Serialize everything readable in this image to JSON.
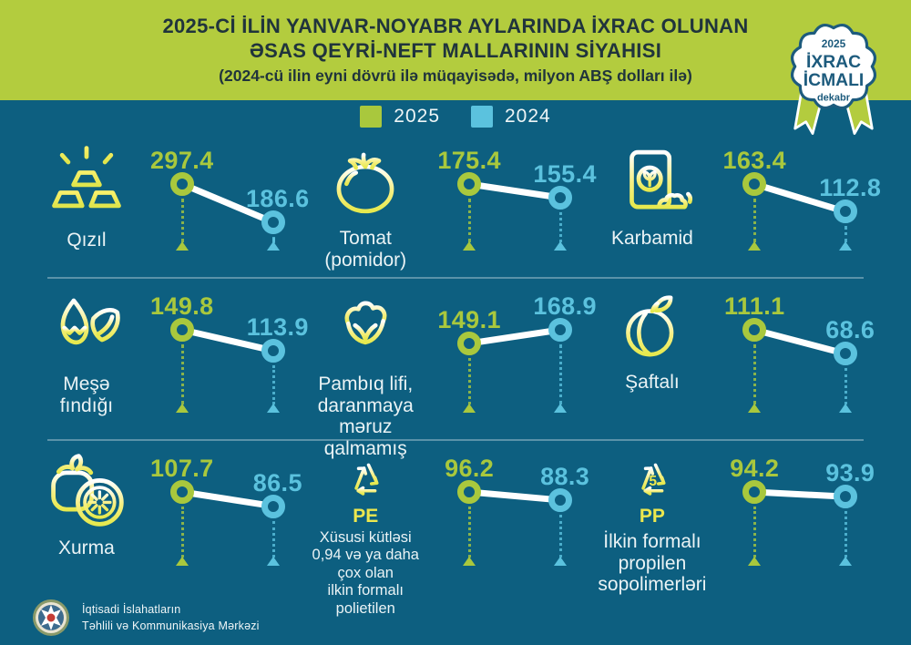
{
  "header": {
    "title_line1": "2025-Cİ İLİN YANVAR-NOYABR AYLARINDA İXRAC OLUNAN",
    "title_line2": "ƏSAS QEYRİ-NEFT MALLARININ SİYAHISI",
    "subtitle": "(2024-cü ilin eyni dövrü ilə müqayisədə, milyon ABŞ dolları ilə)"
  },
  "badge": {
    "year": "2025",
    "line1": "İXRAC",
    "line2": "İCMALI",
    "caption": "dekabr"
  },
  "legend": [
    {
      "label": "2025",
      "color": "#a9c83d"
    },
    {
      "label": "2024",
      "color": "#5bc2de"
    }
  ],
  "items": [
    {
      "icon": "gold-bars",
      "label": "Qızıl",
      "values": [
        297.4,
        186.6
      ]
    },
    {
      "icon": "tomato",
      "label": "Tomat\n(pomidor)",
      "values": [
        175.4,
        155.4
      ]
    },
    {
      "icon": "fertilizer-bag",
      "label": "Karbamid",
      "values": [
        163.4,
        112.8
      ]
    },
    {
      "icon": "hazelnut",
      "label": "Meşə\nfındığı",
      "values": [
        149.8,
        113.9
      ]
    },
    {
      "icon": "cotton",
      "label": "Pambıq lifi,\ndaranmaya məruz\nqalmamış",
      "values": [
        149.1,
        168.9
      ]
    },
    {
      "icon": "peach",
      "label": "Şaftalı",
      "values": [
        111.1,
        68.6
      ]
    },
    {
      "icon": "persimmon",
      "label": "Xurma",
      "values": [
        107.7,
        86.5
      ]
    },
    {
      "icon": "recycle-pe",
      "icon_caption": "PE",
      "label": "Xüsusi kütləsi\n0,94 və ya daha\nçox olan\nilkin formalı polietilen",
      "values": [
        96.2,
        88.3
      ]
    },
    {
      "icon": "recycle-pp",
      "icon_caption": "PP",
      "icon_number": "5",
      "label": "İlkin formalı\npropilen\nsopolimerləri",
      "values": [
        94.2,
        93.9
      ]
    }
  ],
  "footer": {
    "org_line1": "İqtisadi İslahatların",
    "org_line2": "Təhlili və Kommunikasiya Mərkəzi"
  },
  "colors": {
    "background": "#0d5f80",
    "header_green": "#b3cc3e",
    "series_2025": "#a9c83d",
    "series_2024": "#5bc2de",
    "icon_yellow": "#ece74e",
    "badge_navy": "#1d5b7d",
    "title_text": "#20343c",
    "body_text": "#eaf3f5"
  },
  "chart_data": {
    "type": "line",
    "title": "2025-Cİ İLİN YANVAR-NOYABR AYLARINDA İXRAC OLUNAN ƏSAS QEYRİ-NEFT MALLARININ SİYAHISI",
    "subtitle": "(2024-cü ilin eyni dövrü ilə müqayisədə, milyon ABŞ dolları ilə)",
    "unit": "milyon ABŞ dolları",
    "categories": [
      "2025",
      "2024"
    ],
    "legend_position": "top",
    "series": [
      {
        "name": "Qızıl",
        "values": [
          297.4,
          186.6
        ]
      },
      {
        "name": "Tomat (pomidor)",
        "values": [
          175.4,
          155.4
        ]
      },
      {
        "name": "Karbamid",
        "values": [
          163.4,
          112.8
        ]
      },
      {
        "name": "Meşə fındığı",
        "values": [
          149.8,
          113.9
        ]
      },
      {
        "name": "Pambıq lifi, daranmaya məruz qalmamış",
        "values": [
          149.1,
          168.9
        ]
      },
      {
        "name": "Şaftalı",
        "values": [
          111.1,
          68.6
        ]
      },
      {
        "name": "Xurma",
        "values": [
          107.7,
          86.5
        ]
      },
      {
        "name": "Xüsusi kütləsi 0,94 və ya daha çox olan ilkin formalı polietilen (PE)",
        "values": [
          96.2,
          88.3
        ]
      },
      {
        "name": "İlkin formalı propilen sopolimerləri (PP)",
        "values": [
          94.2,
          93.9
        ]
      }
    ]
  }
}
